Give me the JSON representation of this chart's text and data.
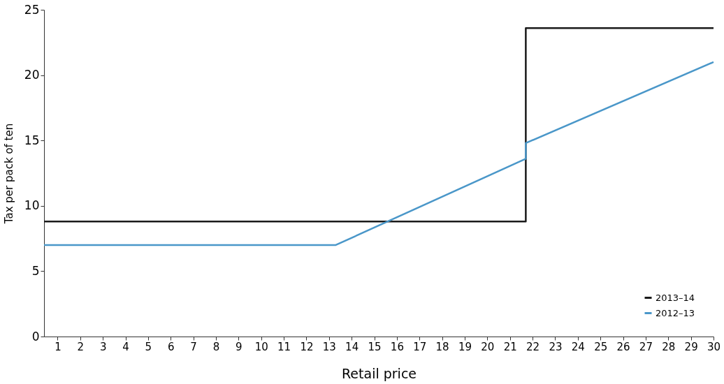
{
  "chart_data": {
    "type": "line",
    "xlabel": "Retail price",
    "ylabel": "Tax per pack of ten",
    "xlim": [
      0.4,
      30
    ],
    "xticks": [
      1,
      2,
      3,
      4,
      5,
      6,
      7,
      8,
      9,
      10,
      11,
      12,
      13,
      14,
      15,
      16,
      17,
      18,
      19,
      20,
      21,
      22,
      23,
      24,
      25,
      26,
      27,
      28,
      29,
      30
    ],
    "ylim": [
      0,
      25
    ],
    "yticks": [
      0,
      5,
      10,
      15,
      20,
      25
    ],
    "grid": false,
    "legend": "bottom right",
    "marker": "none",
    "line_style": "solid",
    "series": [
      {
        "name": "2013–14",
        "color": "#1a1a1a",
        "x": [
          0.4,
          21.7,
          21.7,
          30
        ],
        "values": [
          8.8,
          8.8,
          23.6,
          23.6
        ]
      },
      {
        "name": "2012–13",
        "color": "#4a97c9",
        "x": [
          0.4,
          13.3,
          21.7,
          21.7,
          30
        ],
        "values": [
          7.0,
          7.0,
          13.6,
          14.8,
          21.0
        ]
      }
    ]
  }
}
